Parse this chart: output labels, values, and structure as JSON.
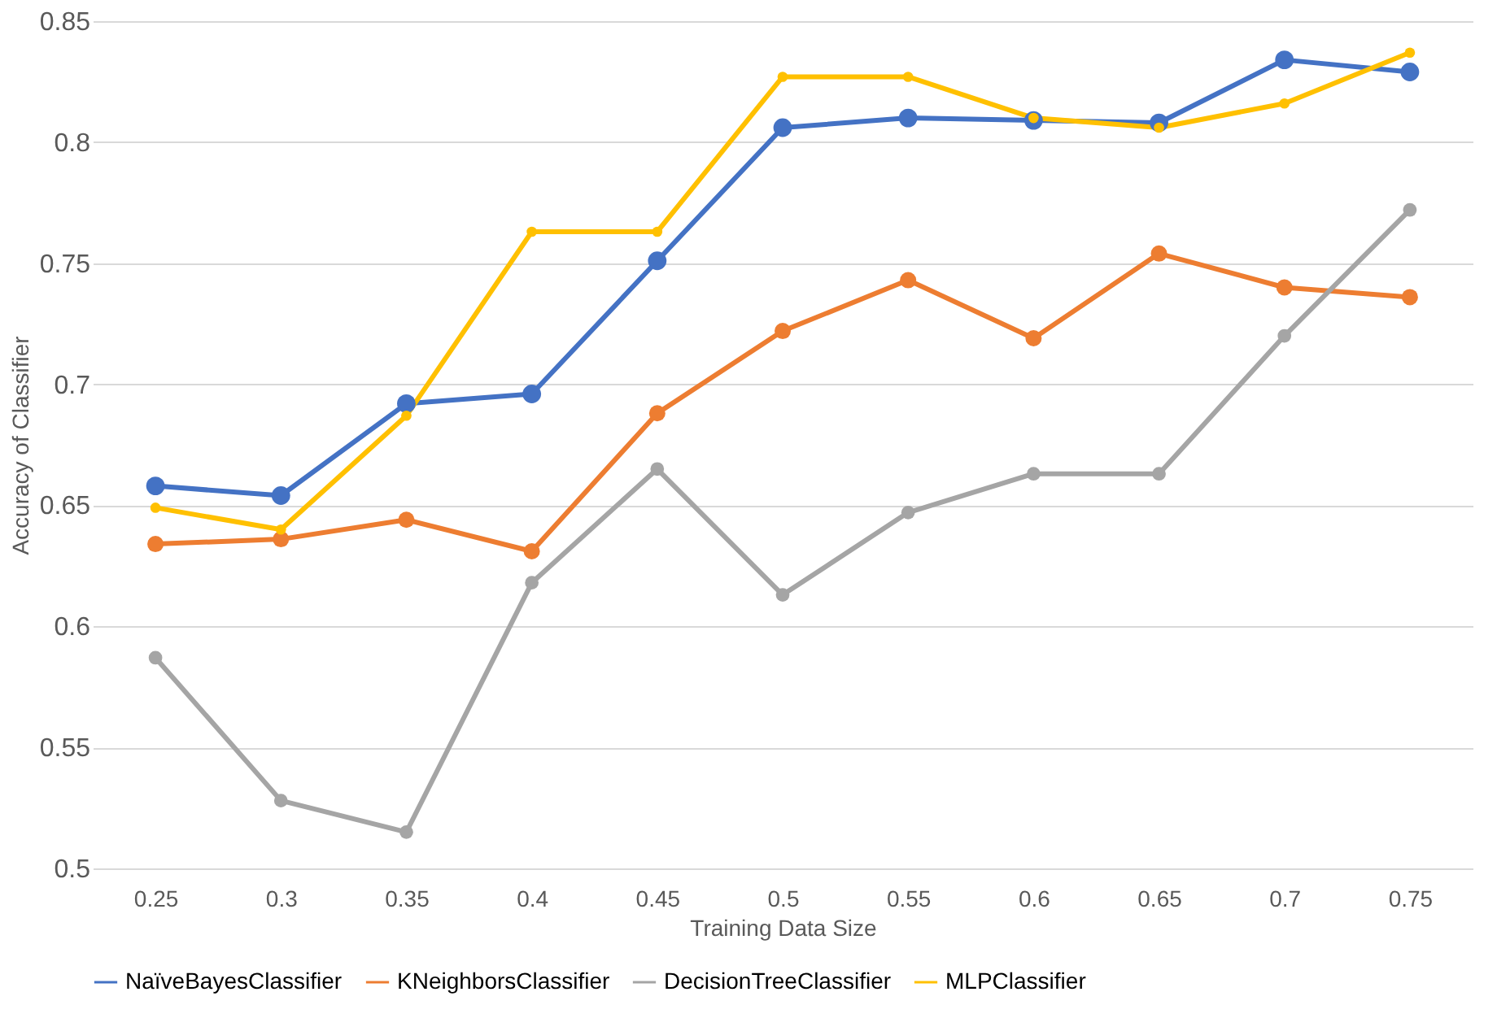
{
  "chart_data": {
    "type": "line",
    "xlabel": "Training Data Size",
    "ylabel": "Accuracy of Classifier",
    "categories": [
      "0.25",
      "0.3",
      "0.35",
      "0.4",
      "0.45",
      "0.5",
      "0.55",
      "0.6",
      "0.65",
      "0.7",
      "0.75"
    ],
    "series": [
      {
        "name": "NaïveBayesClassifier",
        "color": "#4472c4",
        "values": [
          0.658,
          0.654,
          0.692,
          0.696,
          0.751,
          0.806,
          0.81,
          0.809,
          0.808,
          0.834,
          0.829
        ]
      },
      {
        "name": "KNeighborsClassifier",
        "color": "#ed7d31",
        "values": [
          0.634,
          0.636,
          0.644,
          0.631,
          0.688,
          0.722,
          0.743,
          0.719,
          0.754,
          0.74,
          0.736
        ]
      },
      {
        "name": "DecisionTreeClassifier",
        "color": "#a5a5a5",
        "values": [
          0.587,
          0.528,
          0.515,
          0.618,
          0.665,
          0.613,
          0.647,
          0.663,
          0.663,
          0.72,
          0.772
        ]
      },
      {
        "name": "MLPClassifier",
        "color": "#ffc000",
        "values": [
          0.649,
          0.64,
          0.687,
          0.763,
          0.763,
          0.827,
          0.827,
          0.81,
          0.806,
          0.816,
          0.837
        ]
      }
    ],
    "ylim": [
      0.5,
      0.85
    ],
    "yticks": [
      0.5,
      0.55,
      0.6,
      0.65,
      0.7,
      0.75,
      0.8,
      0.85
    ],
    "grid": "y",
    "legend": "bottom",
    "marker": "circle",
    "line_style": "solid"
  }
}
